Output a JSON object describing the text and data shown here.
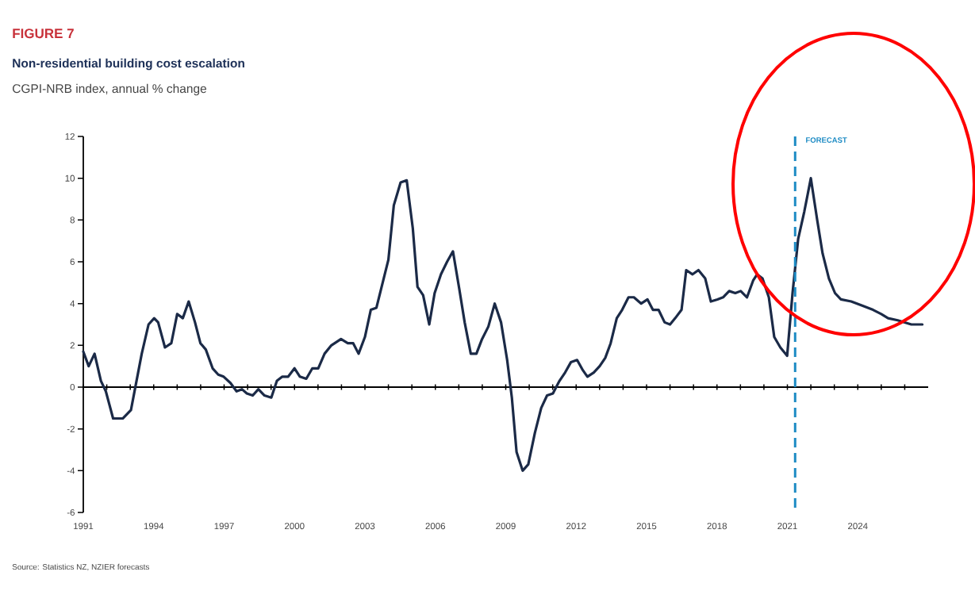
{
  "chart_data": {
    "type": "line",
    "title": "Non-residential building cost escalation",
    "subtitle": "CGPI-NRB index, annual % change",
    "annotations": [
      "FIGURE 7",
      "Source: Statistics NZ, NZIER forecasts"
    ],
    "x": [
      1991.0,
      1991.23,
      1991.48,
      1991.75,
      1991.96,
      1992.27,
      1992.68,
      1993.03,
      1993.2,
      1993.49,
      1993.78,
      1994.02,
      1994.19,
      1994.48,
      1994.75,
      1995.0,
      1995.24,
      1995.49,
      1995.76,
      1995.99,
      1996.22,
      1996.51,
      1996.75,
      1996.98,
      1997.27,
      1997.53,
      1997.76,
      1997.97,
      1998.22,
      1998.46,
      1998.72,
      1999.01,
      1999.25,
      1999.48,
      1999.73,
      2000.0,
      2000.23,
      2000.5,
      2000.76,
      2001.01,
      2001.28,
      2001.57,
      2001.98,
      2002.27,
      2002.5,
      2002.73,
      2003.0,
      2003.25,
      2003.49,
      2004.0,
      2004.23,
      2004.52,
      2004.78,
      2005.04,
      2005.24,
      2005.48,
      2005.74,
      2005.97,
      2006.24,
      2006.5,
      2006.75,
      2007.02,
      2007.25,
      2007.51,
      2007.75,
      2007.99,
      2008.26,
      2008.53,
      2008.8,
      2009.06,
      2009.26,
      2009.46,
      2009.72,
      2009.96,
      2010.24,
      2010.51,
      2010.76,
      2011.01,
      2011.29,
      2011.53,
      2011.78,
      2012.04,
      2012.29,
      2012.48,
      2012.75,
      2013.0,
      2013.24,
      2013.47,
      2013.73,
      2013.96,
      2014.23,
      2014.46,
      2014.77,
      2015.04,
      2015.27,
      2015.51,
      2015.77,
      2016.0,
      2016.22,
      2016.49,
      2016.69,
      2016.96,
      2017.21,
      2017.5,
      2017.74,
      2018.02,
      2018.26,
      2018.52,
      2018.78,
      2019.01,
      2019.28,
      2019.54,
      2019.71,
      2019.94,
      2020.21,
      2020.44,
      2020.7,
      2020.99,
      2021.22,
      2021.46,
      2021.72,
      2022.0,
      2022.27,
      2022.5,
      2022.77,
      2023.03,
      2023.28,
      2023.72,
      2024.19,
      2024.65,
      2025.0,
      2025.29,
      2025.7,
      2026.28,
      2026.75
    ],
    "series": [
      {
        "color": "#1b2a47",
        "values": [
          1.7,
          1.0,
          1.6,
          0.3,
          -0.2,
          -1.5,
          -1.5,
          -1.1,
          -0.1,
          1.6,
          3.0,
          3.3,
          3.1,
          1.9,
          2.1,
          3.5,
          3.3,
          4.1,
          3.1,
          2.1,
          1.8,
          0.9,
          0.6,
          0.5,
          0.2,
          -0.2,
          -0.1,
          -0.3,
          -0.4,
          -0.1,
          -0.4,
          -0.5,
          0.3,
          0.5,
          0.5,
          0.9,
          0.5,
          0.4,
          0.9,
          0.9,
          1.6,
          2.0,
          2.3,
          2.1,
          2.1,
          1.6,
          2.4,
          3.7,
          3.8,
          6.1,
          8.7,
          9.8,
          9.9,
          7.6,
          4.8,
          4.4,
          3.0,
          4.5,
          5.4,
          6.0,
          6.5,
          4.7,
          3.1,
          1.6,
          1.6,
          2.3,
          2.9,
          4.0,
          3.1,
          1.3,
          -0.5,
          -3.1,
          -4.0,
          -3.7,
          -2.2,
          -1.0,
          -0.4,
          -0.3,
          0.3,
          0.7,
          1.2,
          1.3,
          0.8,
          0.5,
          0.7,
          1.0,
          1.4,
          2.1,
          3.3,
          3.7,
          4.3,
          4.3,
          4.0,
          4.2,
          3.7,
          3.7,
          3.1,
          3.0,
          3.3,
          3.7,
          5.6,
          5.4,
          5.6,
          5.2,
          4.1,
          4.2,
          4.3,
          4.6,
          4.5,
          4.6,
          4.3,
          5.1,
          5.4,
          5.2,
          4.3,
          2.4,
          1.9,
          1.5,
          4.5,
          7.1,
          8.4,
          10.0,
          8.0,
          6.4,
          5.2,
          4.5,
          4.2,
          4.1,
          3.9,
          3.7,
          3.5,
          3.3,
          3.2,
          3.0,
          3.0
        ]
      }
    ],
    "xlim": [
      1991,
      2027
    ],
    "ylim": [
      -6,
      12
    ],
    "xticks": [
      1991,
      {
        "value": 1992,
        "label": null
      },
      {
        "value": 1993,
        "label": null
      },
      1994,
      {
        "value": 1995,
        "label": null
      },
      {
        "value": 1996,
        "label": null
      },
      1997,
      {
        "value": 1998,
        "label": null
      },
      {
        "value": 1999,
        "label": null
      },
      2000,
      {
        "value": 2001,
        "label": null
      },
      {
        "value": 2002,
        "label": null
      },
      2003,
      {
        "value": 2004,
        "label": null
      },
      {
        "value": 2005,
        "label": null
      },
      2006,
      {
        "value": 2007,
        "label": null
      },
      {
        "value": 2008,
        "label": null
      },
      2009,
      {
        "value": 2010,
        "label": null
      },
      {
        "value": 2011,
        "label": null
      },
      2012,
      {
        "value": 2013,
        "label": null
      },
      {
        "value": 2014,
        "label": null
      },
      2015,
      {
        "value": 2016,
        "label": null
      },
      {
        "value": 2017,
        "label": null
      },
      2018,
      {
        "value": 2019,
        "label": null
      },
      {
        "value": 2020,
        "label": null
      },
      2021,
      {
        "value": 2022,
        "label": null
      },
      {
        "value": 2023,
        "label": null
      },
      2024,
      {
        "value": 2025,
        "label": null
      },
      {
        "value": 2026,
        "label": null
      }
    ],
    "yticks": [
      -6,
      -4,
      -2,
      0,
      2,
      4,
      6,
      8,
      10,
      12
    ],
    "ref_lines": [
      {
        "axis": "x",
        "value": 2021.33,
        "label": "FORECAST",
        "color": "#1d8bc4",
        "line_style": "dashed"
      }
    ],
    "marker": "none",
    "line_style": "solid"
  }
}
